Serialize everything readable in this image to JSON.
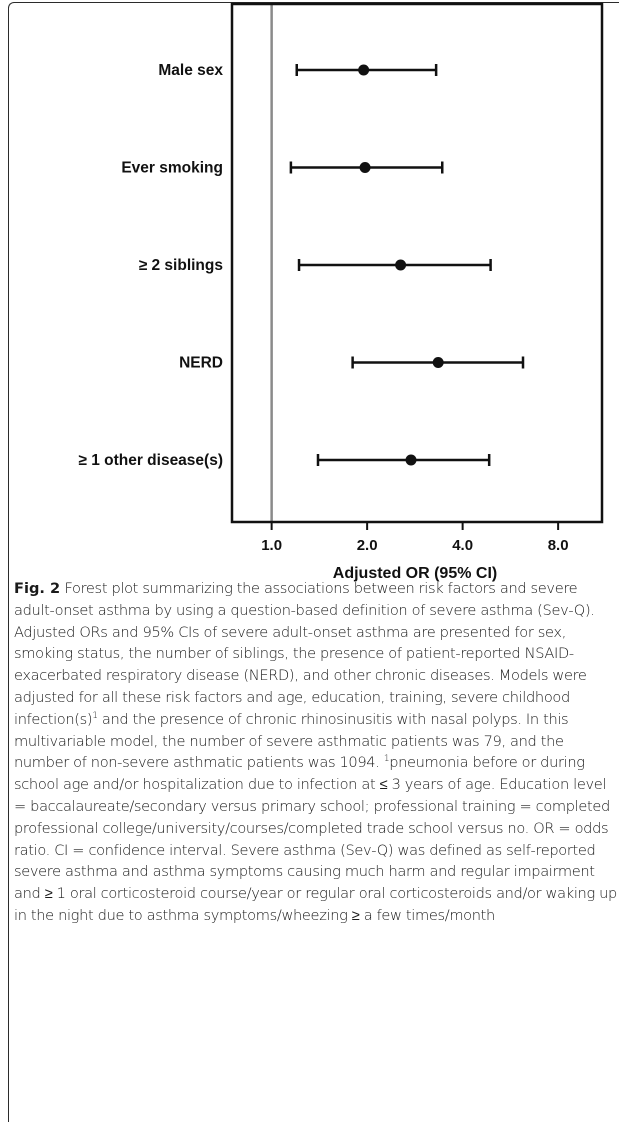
{
  "chart_data": {
    "type": "forest",
    "xlabel": "Adjusted OR (95% CI)",
    "x_scale": "log2",
    "xlim": [
      0.75,
      11
    ],
    "xticks": [
      1.0,
      2.0,
      4.0,
      8.0
    ],
    "xtick_labels": [
      "1.0",
      "2.0",
      "4.0",
      "8.0"
    ],
    "reference_line": 1.0,
    "rows": [
      {
        "label": "Male sex",
        "or": 1.95,
        "lo": 1.2,
        "hi": 3.3
      },
      {
        "label": "Ever smoking",
        "or": 1.97,
        "lo": 1.15,
        "hi": 3.45
      },
      {
        "label": "≥ 2 siblings",
        "or": 2.55,
        "lo": 1.22,
        "hi": 4.9
      },
      {
        "label": "NERD",
        "or": 3.35,
        "lo": 1.8,
        "hi": 6.2
      },
      {
        "label": "≥ 1 other disease(s)",
        "or": 2.75,
        "lo": 1.4,
        "hi": 4.85
      }
    ]
  },
  "caption": {
    "fig_label": "Fig. 2",
    "part1": "Forest plot summarizing the associations between risk factors and severe adult-onset asthma by using a question-based definition of severe asthma (Sev-Q). Adjusted ORs and 95% CIs of severe adult-onset asthma are presented for sex, smoking status, the number of siblings, the presence of patient-reported NSAID-exacerbated respiratory disease (NERD), and other chronic diseases. Models were adjusted for all these risk factors and age, education, training, severe childhood infection(s)",
    "sup1": "1",
    "part2": " and the presence of chronic rhinosinusitis with nasal polyps. In this multivariable model, the number of severe asthmatic patients was 79, and the number of non-severe asthmatic patients was 1094. ",
    "sup2": "1",
    "part3": "pneumonia before or during school age and/or hospitalization due to infection at ≤ 3 years of age. Education level = baccalaureate/secondary versus primary school; professional training = completed professional college/university/courses/completed trade school versus no. OR = odds ratio. CI = confidence interval. Severe asthma (Sev-Q) was defined as self-reported severe asthma and asthma symptoms causing much harm and regular impairment and ≥ 1 oral corticosteroid course/year or regular oral corticosteroids and/or waking up in the night due to asthma symptoms/wheezing ≥ a few times/month"
  }
}
